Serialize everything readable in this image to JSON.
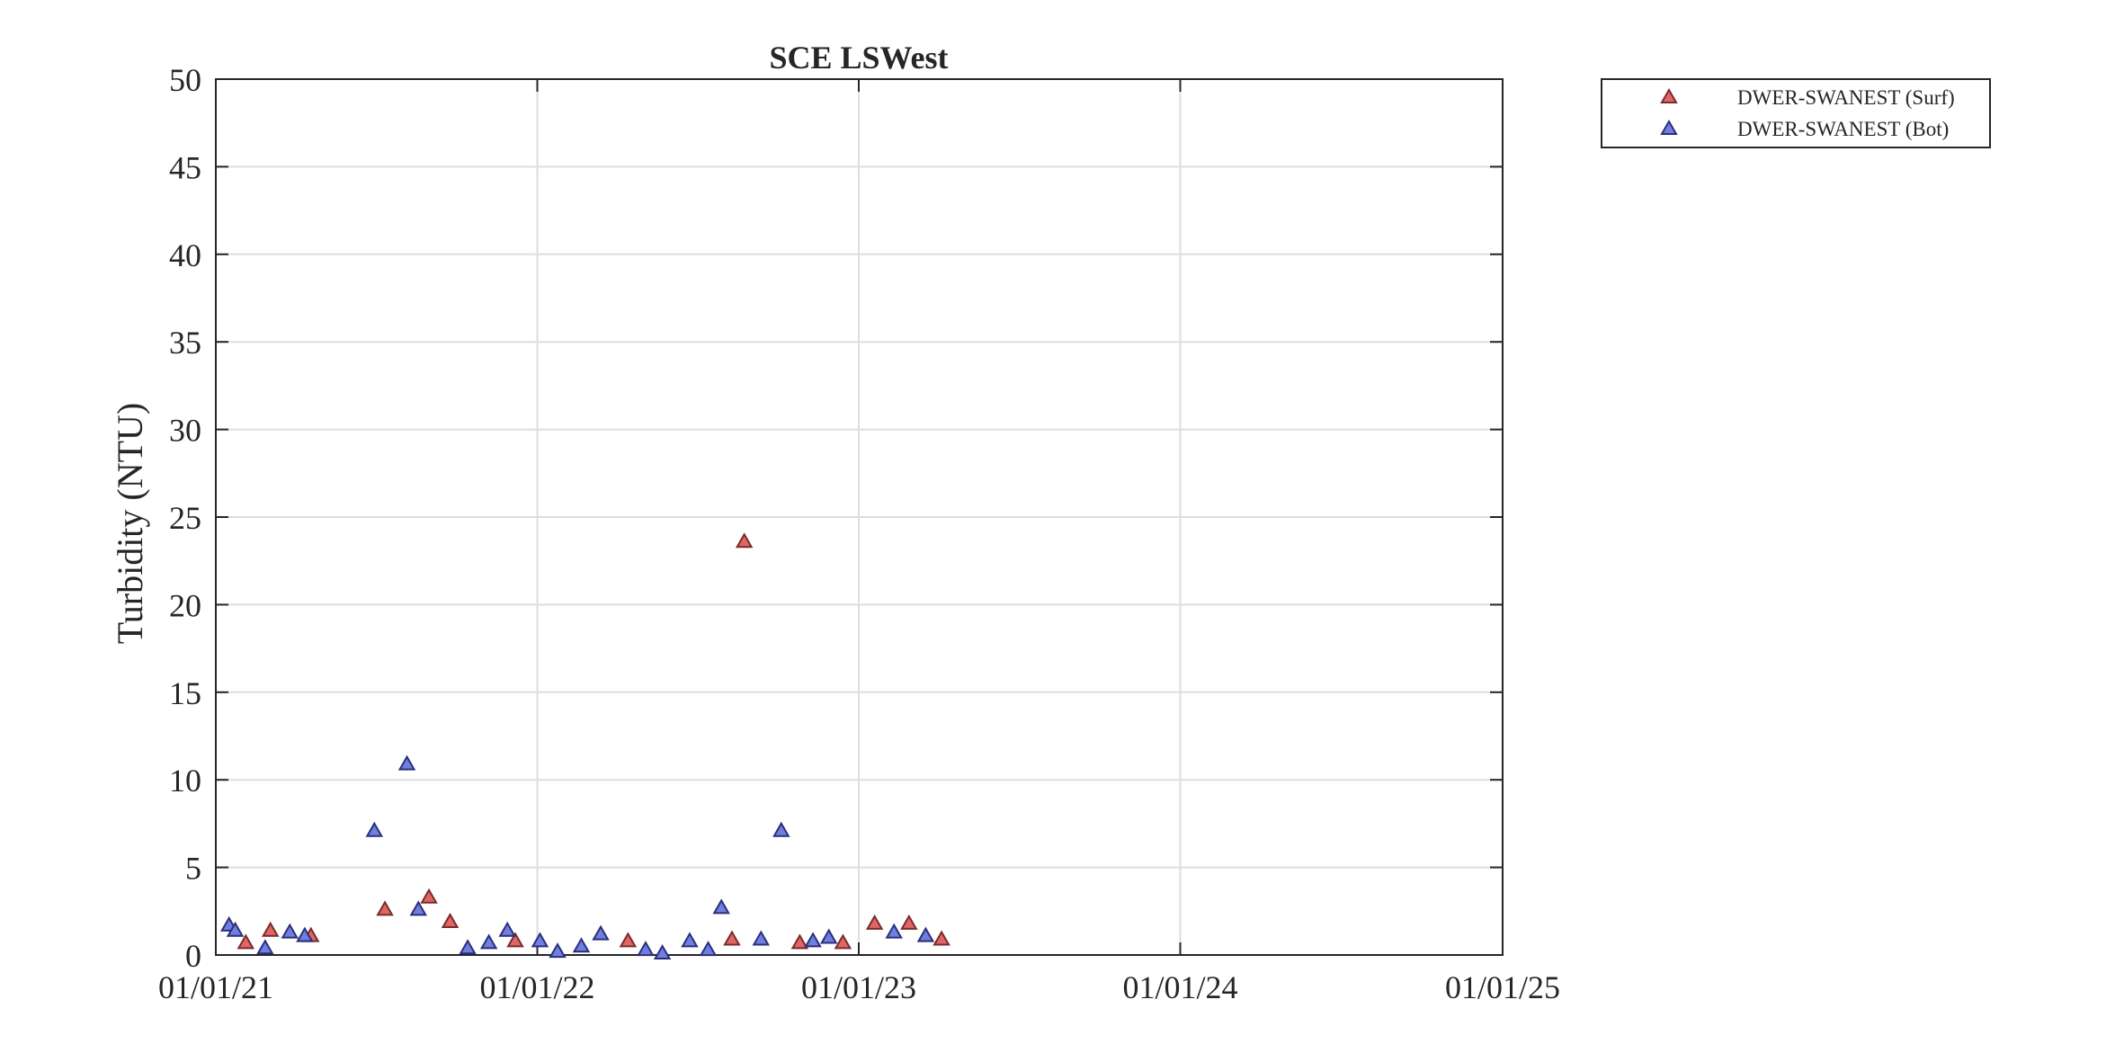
{
  "chart_data": {
    "type": "scatter",
    "title": "SCE LSWest",
    "xlabel": "",
    "ylabel": "Turbidity (NTU)",
    "xlim": [
      "2021-01-01",
      "2025-01-01"
    ],
    "ylim": [
      0,
      50
    ],
    "x_ticks": [
      "2021-01-01",
      "2022-01-01",
      "2023-01-01",
      "2024-01-01",
      "2025-01-01"
    ],
    "x_tick_labels": [
      "01/01/21",
      "01/01/22",
      "01/01/23",
      "01/01/24",
      "01/01/25"
    ],
    "y_ticks": [
      0,
      5,
      10,
      15,
      20,
      25,
      30,
      35,
      40,
      45,
      50
    ],
    "y_tick_labels": [
      "0",
      "5",
      "10",
      "15",
      "20",
      "25",
      "30",
      "35",
      "40",
      "45",
      "50"
    ],
    "grid": true,
    "legend_position": "outside-top-right",
    "series": [
      {
        "name": "DWER-SWANEST (Surf)",
        "marker": "triangle",
        "color": "#e06666",
        "edge_color": "#7a2a2a",
        "points": [
          {
            "x": "2021-02-04",
            "y": 0.7
          },
          {
            "x": "2021-03-04",
            "y": 1.4
          },
          {
            "x": "2021-04-19",
            "y": 1.1
          },
          {
            "x": "2021-07-12",
            "y": 2.6
          },
          {
            "x": "2021-08-31",
            "y": 3.3
          },
          {
            "x": "2021-09-24",
            "y": 1.9
          },
          {
            "x": "2021-12-07",
            "y": 0.8
          },
          {
            "x": "2022-04-14",
            "y": 0.8
          },
          {
            "x": "2022-08-10",
            "y": 0.9
          },
          {
            "x": "2022-08-24",
            "y": 23.6
          },
          {
            "x": "2022-10-26",
            "y": 0.7
          },
          {
            "x": "2022-12-14",
            "y": 0.7
          },
          {
            "x": "2023-01-19",
            "y": 1.8
          },
          {
            "x": "2023-02-27",
            "y": 1.8
          },
          {
            "x": "2023-04-05",
            "y": 0.9
          }
        ]
      },
      {
        "name": "DWER-SWANEST (Bot)",
        "marker": "triangle",
        "color": "#6f7fe0",
        "edge_color": "#2a2f7a",
        "points": [
          {
            "x": "2021-01-16",
            "y": 1.7
          },
          {
            "x": "2021-01-23",
            "y": 1.4
          },
          {
            "x": "2021-02-26",
            "y": 0.4
          },
          {
            "x": "2021-03-26",
            "y": 1.3
          },
          {
            "x": "2021-04-12",
            "y": 1.1
          },
          {
            "x": "2021-06-30",
            "y": 7.1
          },
          {
            "x": "2021-08-06",
            "y": 10.9
          },
          {
            "x": "2021-08-19",
            "y": 2.6
          },
          {
            "x": "2021-10-14",
            "y": 0.4
          },
          {
            "x": "2021-11-07",
            "y": 0.7
          },
          {
            "x": "2021-11-28",
            "y": 1.4
          },
          {
            "x": "2022-01-04",
            "y": 0.8
          },
          {
            "x": "2022-01-24",
            "y": 0.2
          },
          {
            "x": "2022-02-20",
            "y": 0.5
          },
          {
            "x": "2022-03-14",
            "y": 1.2
          },
          {
            "x": "2022-05-04",
            "y": 0.3
          },
          {
            "x": "2022-05-23",
            "y": 0.1
          },
          {
            "x": "2022-06-23",
            "y": 0.8
          },
          {
            "x": "2022-07-14",
            "y": 0.3
          },
          {
            "x": "2022-07-29",
            "y": 2.7
          },
          {
            "x": "2022-09-12",
            "y": 0.9
          },
          {
            "x": "2022-10-05",
            "y": 7.1
          },
          {
            "x": "2022-11-10",
            "y": 0.8
          },
          {
            "x": "2022-11-28",
            "y": 1.0
          },
          {
            "x": "2023-02-10",
            "y": 1.3
          },
          {
            "x": "2023-03-18",
            "y": 1.1
          }
        ]
      }
    ]
  }
}
